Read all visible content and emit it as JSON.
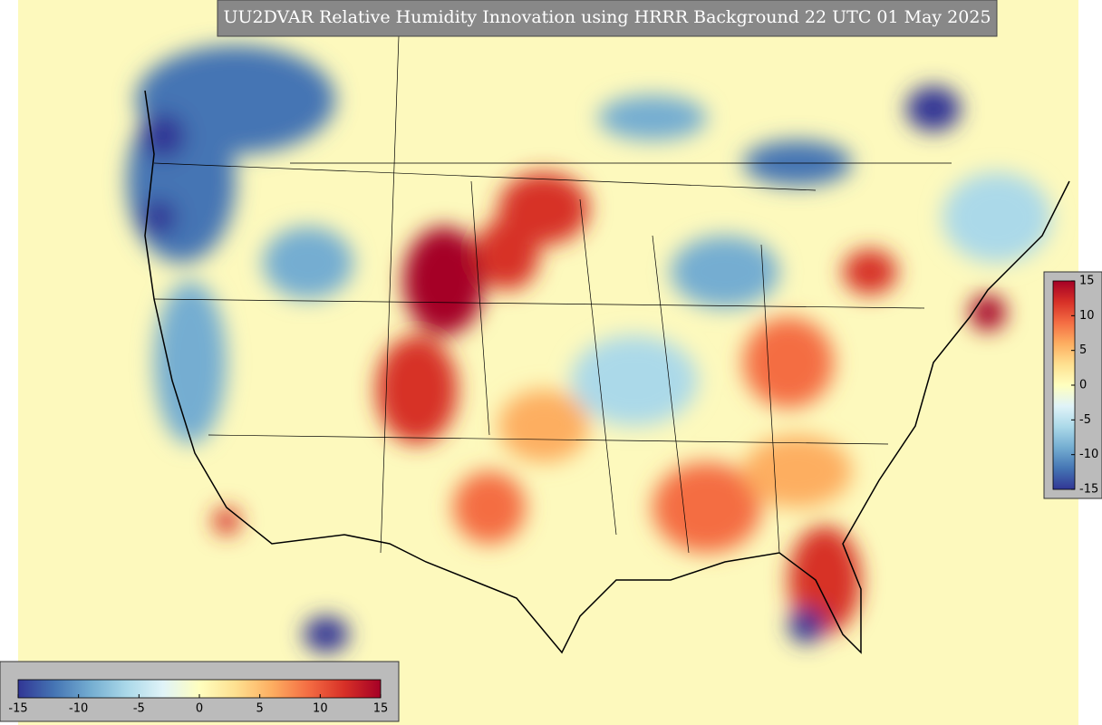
{
  "title": "UU2DVAR Relative Humidity Innovation using HRRR Background 22 UTC 01 May 2025",
  "colormap": [
    "#313695",
    "#4575b4",
    "#74add1",
    "#abd9e9",
    "#e0f3f8",
    "#ffffbf",
    "#fee090",
    "#fdae61",
    "#f46d43",
    "#d73027",
    "#a50026"
  ],
  "colorbar_horizontal": {
    "range": [
      -15,
      15
    ],
    "ticks": [
      -15,
      -10,
      -5,
      0,
      5,
      10,
      15
    ]
  },
  "colorbar_vertical": {
    "range": [
      -15,
      15
    ],
    "ticks": [
      -15,
      -10,
      -5,
      0,
      5,
      10,
      15
    ]
  }
}
